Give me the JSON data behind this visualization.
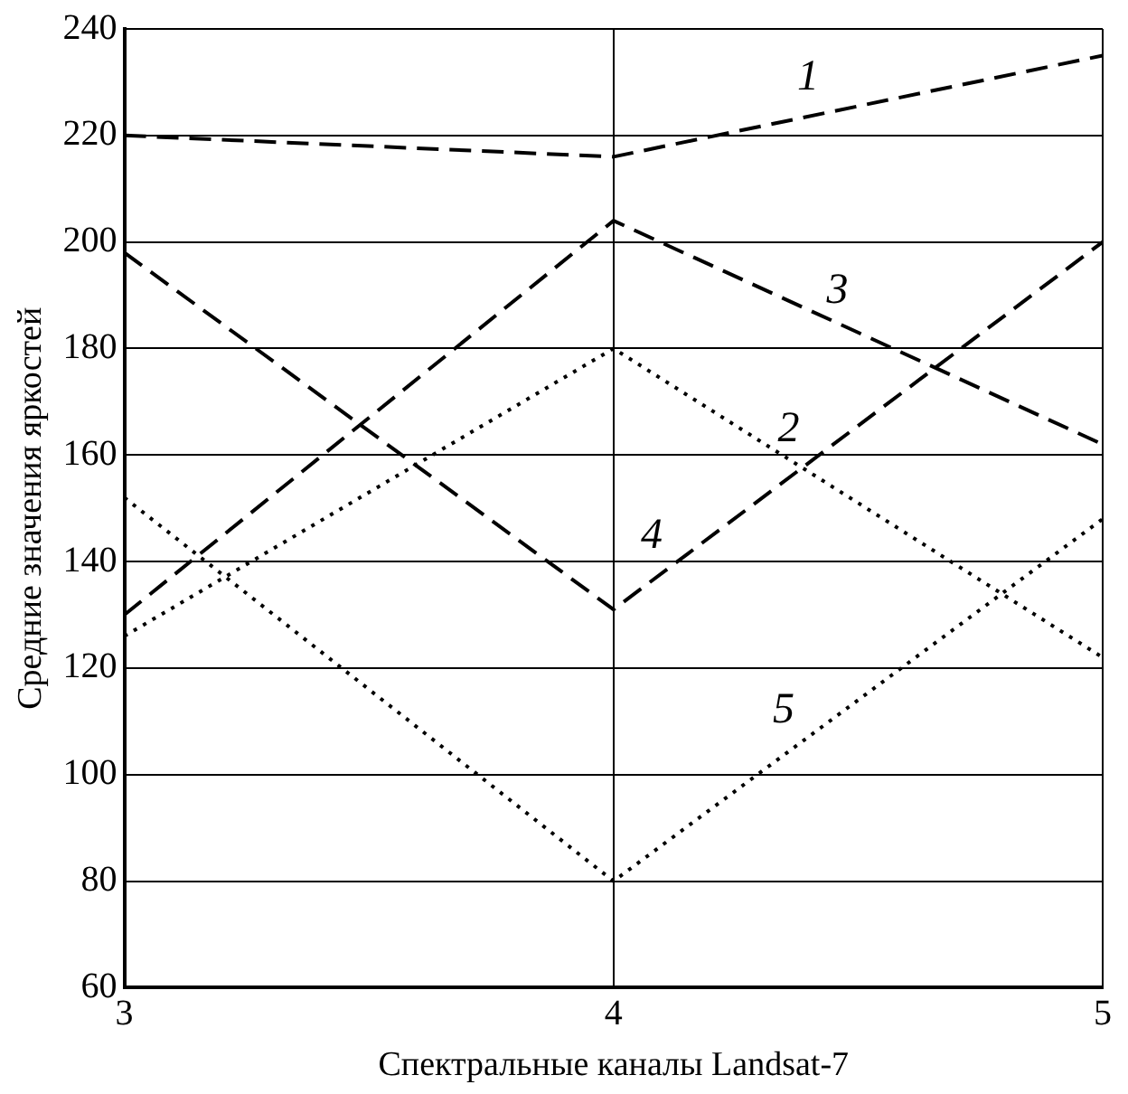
{
  "chart_data": {
    "type": "line",
    "xlabel": "Спектральные каналы Landsat-7",
    "ylabel": "Средние значения яркостей",
    "x": [
      3,
      4,
      5
    ],
    "xlim": [
      3,
      5
    ],
    "xticks": [
      3,
      4,
      5
    ],
    "ylim": [
      60,
      240
    ],
    "yticks": [
      60,
      80,
      100,
      120,
      140,
      160,
      180,
      200,
      220,
      240
    ],
    "grid": true,
    "legend": false,
    "marker": "none",
    "series": [
      {
        "name": "1",
        "color": "#000000",
        "line_style": "dashed",
        "values": [
          220,
          216,
          235
        ]
      },
      {
        "name": "2",
        "color": "#000000",
        "line_style": "dotted",
        "values": [
          126,
          180,
          122
        ]
      },
      {
        "name": "3",
        "color": "#000000",
        "line_style": "dashed",
        "values": [
          130,
          204,
          162
        ]
      },
      {
        "name": "4",
        "color": "#000000",
        "line_style": "dashed",
        "values": [
          198,
          131,
          200
        ]
      },
      {
        "name": "5",
        "color": "#000000",
        "line_style": "dotted",
        "values": [
          152,
          80,
          148
        ]
      }
    ]
  }
}
